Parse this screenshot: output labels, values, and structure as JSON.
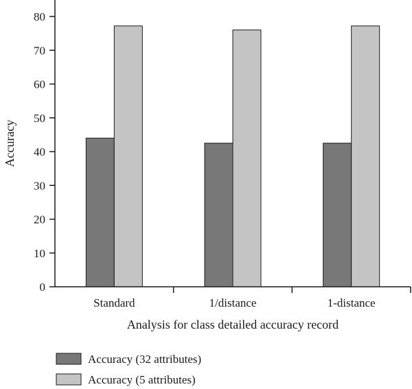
{
  "chart_data": {
    "type": "bar",
    "title": "",
    "xlabel": "Analysis for class detailed accuracy record",
    "ylabel": "Accuracy",
    "categories": [
      "Standard",
      "1/distance",
      "1-distance"
    ],
    "series": [
      {
        "name": "Accuracy (32 attributes)",
        "values": [
          44.0,
          42.5,
          42.5
        ],
        "color": "#787878"
      },
      {
        "name": "Accuracy (5 attributes)",
        "values": [
          77.2,
          76.0,
          77.2
        ],
        "color": "#c4c4c4"
      }
    ],
    "ylim": [
      0,
      80
    ],
    "yticks": [
      "0",
      "10",
      "20",
      "30",
      "40",
      "50",
      "60",
      "70",
      "80"
    ],
    "grid": false,
    "legend": "bottom"
  }
}
